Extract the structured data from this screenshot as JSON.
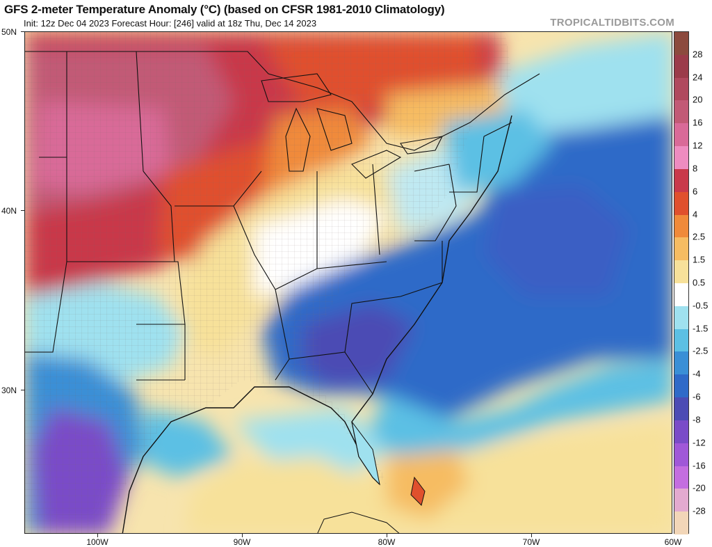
{
  "header": {
    "title": "GFS 2-meter Temperature Anomaly (°C) (based on CFSR 1981-2010 Climatology)",
    "subtitle": "Init: 12z Dec 04 2023   Forecast Hour: [246]   valid at 18z Thu, Dec 14 2023",
    "brand": "TROPICALTIDBITS.COM"
  },
  "map": {
    "region": "Eastern United States",
    "lat_labels": [
      "50N",
      "40N",
      "30N"
    ],
    "lon_labels": [
      "100W",
      "90W",
      "80W",
      "70W",
      "60W"
    ]
  },
  "colorbar": {
    "labels": [
      "28",
      "24",
      "20",
      "16",
      "12",
      "8",
      "6",
      "4",
      "2.5",
      "1.5",
      "0.5",
      "-0.5",
      "-1.5",
      "-2.5",
      "-4",
      "-6",
      "-8",
      "-12",
      "-16",
      "-20",
      "-28"
    ],
    "colors": [
      "#8c4a3e",
      "#9b3b4a",
      "#b0495e",
      "#c25a76",
      "#d96a98",
      "#ee8cc0",
      "#c9394a",
      "#e0502d",
      "#f08a3a",
      "#f6bc62",
      "#f7e19a",
      "#ffffff",
      "#9fe1ef",
      "#5cc0e4",
      "#3a8fd6",
      "#2f6ac8",
      "#4c4cb4",
      "#7a4cc8",
      "#a058d8",
      "#c46ee0",
      "#e3aad0",
      "#f2d6b8"
    ]
  }
}
